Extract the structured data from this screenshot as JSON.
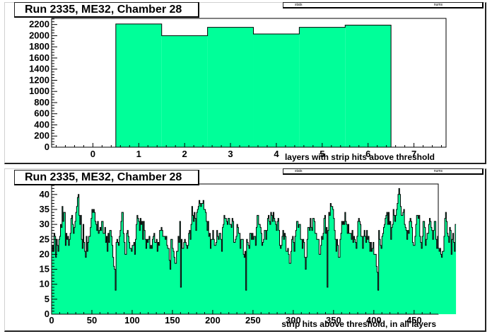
{
  "colors": {
    "fill": "#00ff99",
    "line": "#000000"
  },
  "chart_data": [
    {
      "type": "bar",
      "title": "Run 2335, ME32, Chamber 28",
      "stats_name": "stats",
      "stats_value": "nums",
      "xlabel": "layers with strip hits above threshold",
      "ylabel": "",
      "categories": [
        "1",
        "2",
        "3",
        "4",
        "5",
        "6"
      ],
      "values": [
        2210,
        2000,
        2150,
        2030,
        2150,
        2190
      ],
      "xlim": [
        -0.9,
        7.7
      ],
      "ylim": [
        0,
        2310
      ],
      "xticks": [
        0,
        1,
        2,
        3,
        4,
        5,
        6,
        7
      ],
      "yticks": [
        0,
        200,
        400,
        600,
        800,
        1000,
        1200,
        1400,
        1600,
        1800,
        2000,
        2200
      ],
      "grid": false
    },
    {
      "type": "bar",
      "title": "Run 2335, ME32, Chamber 28",
      "stats_name": "stats",
      "stats_value": "nums",
      "xlabel": "strip hits above threshold, in all layers",
      "ylabel": "",
      "xlim": [
        0,
        480
      ],
      "ylim": [
        0,
        43.5
      ],
      "xticks": [
        0,
        50,
        100,
        150,
        200,
        250,
        300,
        350,
        400,
        450
      ],
      "yticks": [
        0,
        5,
        10,
        15,
        20,
        25,
        30,
        35,
        40
      ],
      "bin_width": 1,
      "values": [
        21,
        23,
        21,
        27,
        26,
        19,
        25,
        23,
        21,
        25,
        26,
        30,
        29,
        36,
        31,
        34,
        34,
        23,
        27,
        25,
        26,
        23,
        25,
        27,
        32,
        33,
        30,
        27,
        29,
        31,
        34,
        36,
        39,
        40,
        33,
        30,
        33,
        25,
        22,
        30,
        24,
        21,
        19,
        26,
        21,
        24,
        26,
        26,
        29,
        32,
        35,
        34,
        35,
        34,
        31,
        30,
        28,
        31,
        27,
        28,
        29,
        28,
        31,
        31,
        27,
        27,
        29,
        24,
        26,
        21,
        27,
        24,
        28,
        28,
        26,
        23,
        19,
        16,
        15,
        8,
        24,
        25,
        24,
        23,
        26,
        28,
        31,
        34,
        34,
        27,
        24,
        20,
        20,
        27,
        28,
        26,
        24,
        22,
        22,
        21,
        23,
        23,
        24,
        20,
        25,
        30,
        33,
        32,
        31,
        28,
        32,
        30,
        31,
        25,
        31,
        28,
        25,
        22,
        25,
        24,
        25,
        26,
        22,
        23,
        22,
        25,
        26,
        27,
        24,
        24,
        25,
        21,
        24,
        23,
        28,
        28,
        29,
        28,
        26,
        26,
        26,
        25,
        26,
        23,
        22,
        22,
        18,
        15,
        25,
        25,
        22,
        21,
        19,
        17,
        17,
        21,
        21,
        26,
        24,
        31,
        9,
        25,
        22,
        22,
        24,
        25,
        24,
        23,
        22,
        23,
        27,
        28,
        25,
        30,
        36,
        33,
        31,
        34,
        32,
        28,
        34,
        35,
        36,
        38,
        37,
        36,
        37,
        37,
        38,
        35,
        35,
        34,
        31,
        28,
        31,
        26,
        27,
        22,
        25,
        25,
        28,
        25,
        23,
        23,
        24,
        28,
        26,
        25,
        27,
        27,
        25,
        21,
        29,
        30,
        33,
        32,
        32,
        31,
        30,
        32,
        32,
        30,
        30,
        29,
        32,
        31,
        24,
        24,
        25,
        26,
        30,
        29,
        27,
        27,
        22,
        25,
        25,
        25,
        20,
        19,
        21,
        8,
        25,
        24,
        23,
        22,
        27,
        27,
        25,
        27,
        25,
        26,
        26,
        23,
        29,
        33,
        33,
        30,
        30,
        29,
        27,
        23,
        24,
        25,
        28,
        28,
        25,
        28,
        32,
        33,
        31,
        30,
        34,
        33,
        31,
        34,
        32,
        31,
        30,
        28,
        31,
        32,
        28,
        23,
        22,
        23,
        26,
        28,
        25,
        27,
        26,
        21,
        21,
        22,
        20,
        17,
        17,
        21,
        25,
        26,
        24,
        21,
        26,
        28,
        31,
        31,
        29,
        30,
        30,
        25,
        25,
        22,
        25,
        24,
        19,
        15,
        19,
        25,
        29,
        29,
        28,
        32,
        29,
        28,
        32,
        32,
        31,
        27,
        27,
        25,
        25,
        25,
        20,
        20,
        23,
        26,
        25,
        27,
        32,
        33,
        27,
        29,
        9,
        28,
        34,
        33,
        37,
        36,
        36,
        35,
        32,
        28,
        25,
        21,
        25,
        23,
        19,
        19,
        25,
        27,
        31,
        30,
        31,
        30,
        34,
        31,
        30,
        27,
        30,
        27,
        27,
        27,
        25,
        28,
        24,
        26,
        25,
        24,
        22,
        26,
        31,
        32,
        31,
        30,
        26,
        26,
        22,
        26,
        28,
        26,
        24,
        28,
        25,
        26,
        24,
        21,
        24,
        21,
        22,
        24,
        20,
        20,
        20,
        16,
        14,
        8,
        28,
        25,
        23,
        22,
        26,
        27,
        29,
        30,
        32,
        33,
        34,
        30,
        34,
        30,
        31,
        25,
        29,
        30,
        35,
        33,
        31,
        33,
        35,
        37,
        40,
        42,
        40,
        36,
        33,
        33,
        34,
        35,
        30,
        29,
        28,
        25,
        28,
        27,
        31,
        32,
        31,
        29,
        24,
        23,
        23,
        26,
        30,
        33,
        33,
        32,
        33,
        26,
        24,
        22,
        26,
        31,
        31,
        29,
        23,
        25,
        27,
        27,
        30,
        32,
        31,
        29,
        28,
        25,
        28,
        31,
        31,
        25,
        22,
        26,
        22,
        21,
        22,
        20,
        19,
        21,
        21,
        26,
        32,
        34,
        31,
        27,
        26,
        24,
        29,
        28,
        20,
        25,
        27,
        24,
        21,
        30
      ]
    }
  ]
}
